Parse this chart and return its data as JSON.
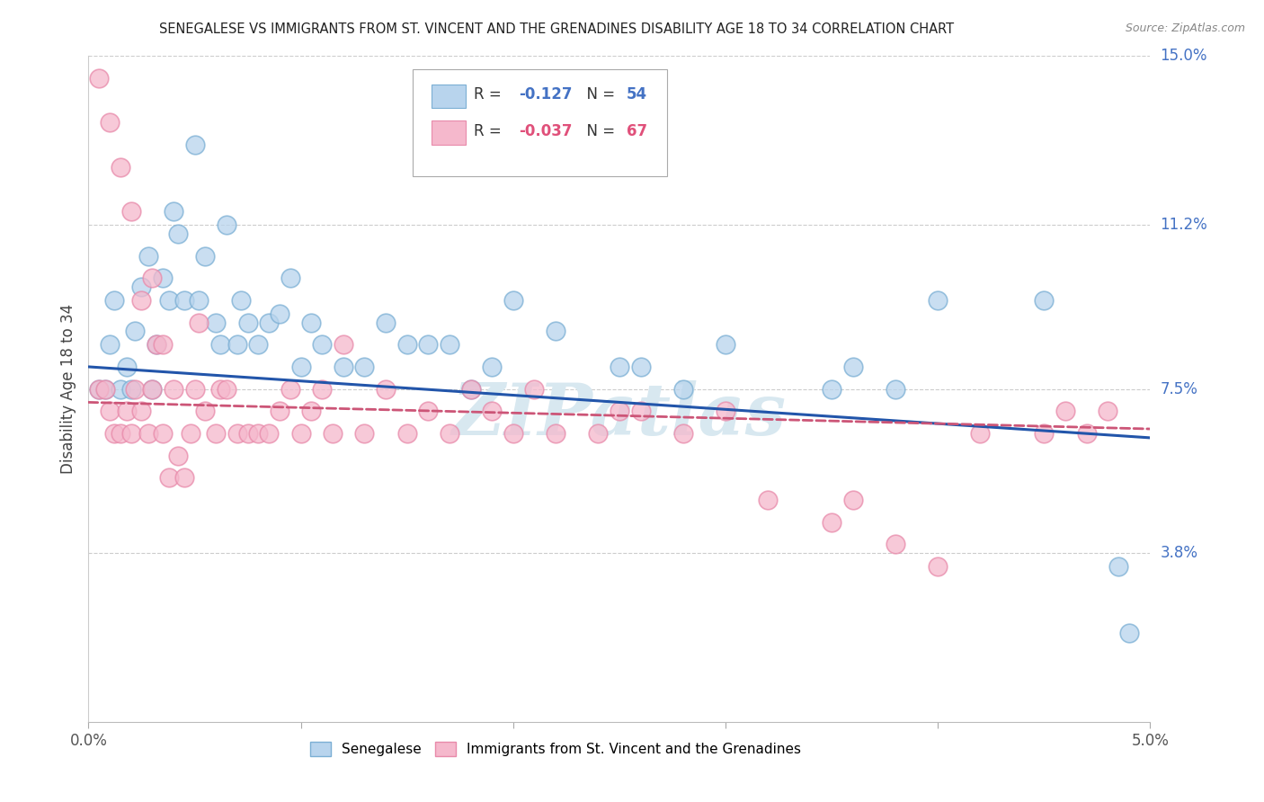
{
  "title": "SENEGALESE VS IMMIGRANTS FROM ST. VINCENT AND THE GRENADINES DISABILITY AGE 18 TO 34 CORRELATION CHART",
  "source": "Source: ZipAtlas.com",
  "ylabel": "Disability Age 18 to 34",
  "x_min": 0.0,
  "x_max": 5.0,
  "y_min": 0.0,
  "y_max": 15.0,
  "yticks": [
    3.8,
    7.5,
    11.2,
    15.0
  ],
  "ytick_labels": [
    "3.8%",
    "7.5%",
    "11.2%",
    "15.0%"
  ],
  "watermark": "ZIPatlas",
  "senegalese_color": "#b8d4ed",
  "senegalese_edge": "#7bafd4",
  "svgr_color": "#f5b8cc",
  "svgr_edge": "#e88aaa",
  "regression_blue": "#2255aa",
  "regression_pink": "#cc5577",
  "senegalese_r": "-0.127",
  "senegalese_n": "54",
  "svgr_r": "-0.037",
  "svgr_n": "67",
  "senegalese_x": [
    0.05,
    0.08,
    0.1,
    0.12,
    0.15,
    0.18,
    0.2,
    0.22,
    0.25,
    0.28,
    0.3,
    0.32,
    0.35,
    0.38,
    0.4,
    0.42,
    0.45,
    0.5,
    0.52,
    0.55,
    0.6,
    0.62,
    0.65,
    0.7,
    0.72,
    0.75,
    0.8,
    0.85,
    0.9,
    0.95,
    1.0,
    1.05,
    1.1,
    1.2,
    1.3,
    1.4,
    1.5,
    1.6,
    1.7,
    1.8,
    1.9,
    2.0,
    2.2,
    2.5,
    2.6,
    2.8,
    3.0,
    3.5,
    3.6,
    3.8,
    4.0,
    4.5,
    4.85,
    4.9
  ],
  "senegalese_y": [
    7.5,
    7.5,
    8.5,
    9.5,
    7.5,
    8.0,
    7.5,
    8.8,
    9.8,
    10.5,
    7.5,
    8.5,
    10.0,
    9.5,
    11.5,
    11.0,
    9.5,
    13.0,
    9.5,
    10.5,
    9.0,
    8.5,
    11.2,
    8.5,
    9.5,
    9.0,
    8.5,
    9.0,
    9.2,
    10.0,
    8.0,
    9.0,
    8.5,
    8.0,
    8.0,
    9.0,
    8.5,
    8.5,
    8.5,
    7.5,
    8.0,
    9.5,
    8.8,
    8.0,
    8.0,
    7.5,
    8.5,
    7.5,
    8.0,
    7.5,
    9.5,
    9.5,
    3.5,
    2.0
  ],
  "svgr_x": [
    0.05,
    0.08,
    0.1,
    0.12,
    0.15,
    0.18,
    0.2,
    0.22,
    0.25,
    0.28,
    0.3,
    0.32,
    0.35,
    0.38,
    0.4,
    0.42,
    0.45,
    0.48,
    0.5,
    0.52,
    0.55,
    0.6,
    0.62,
    0.65,
    0.7,
    0.75,
    0.8,
    0.85,
    0.9,
    0.95,
    1.0,
    1.05,
    1.1,
    1.15,
    1.2,
    1.3,
    1.4,
    1.5,
    1.6,
    1.7,
    1.8,
    1.9,
    2.0,
    2.1,
    2.2,
    2.4,
    2.5,
    2.6,
    2.8,
    3.0,
    3.2,
    3.5,
    3.6,
    3.8,
    4.0,
    4.2,
    4.5,
    4.6,
    4.7,
    4.8,
    0.05,
    0.1,
    0.15,
    0.2,
    0.25,
    0.3,
    0.35
  ],
  "svgr_y": [
    7.5,
    7.5,
    7.0,
    6.5,
    6.5,
    7.0,
    6.5,
    7.5,
    7.0,
    6.5,
    7.5,
    8.5,
    6.5,
    5.5,
    7.5,
    6.0,
    5.5,
    6.5,
    7.5,
    9.0,
    7.0,
    6.5,
    7.5,
    7.5,
    6.5,
    6.5,
    6.5,
    6.5,
    7.0,
    7.5,
    6.5,
    7.0,
    7.5,
    6.5,
    8.5,
    6.5,
    7.5,
    6.5,
    7.0,
    6.5,
    7.5,
    7.0,
    6.5,
    7.5,
    6.5,
    6.5,
    7.0,
    7.0,
    6.5,
    7.0,
    5.0,
    4.5,
    5.0,
    4.0,
    3.5,
    6.5,
    6.5,
    7.0,
    6.5,
    7.0,
    14.5,
    13.5,
    12.5,
    11.5,
    9.5,
    10.0,
    8.5
  ]
}
